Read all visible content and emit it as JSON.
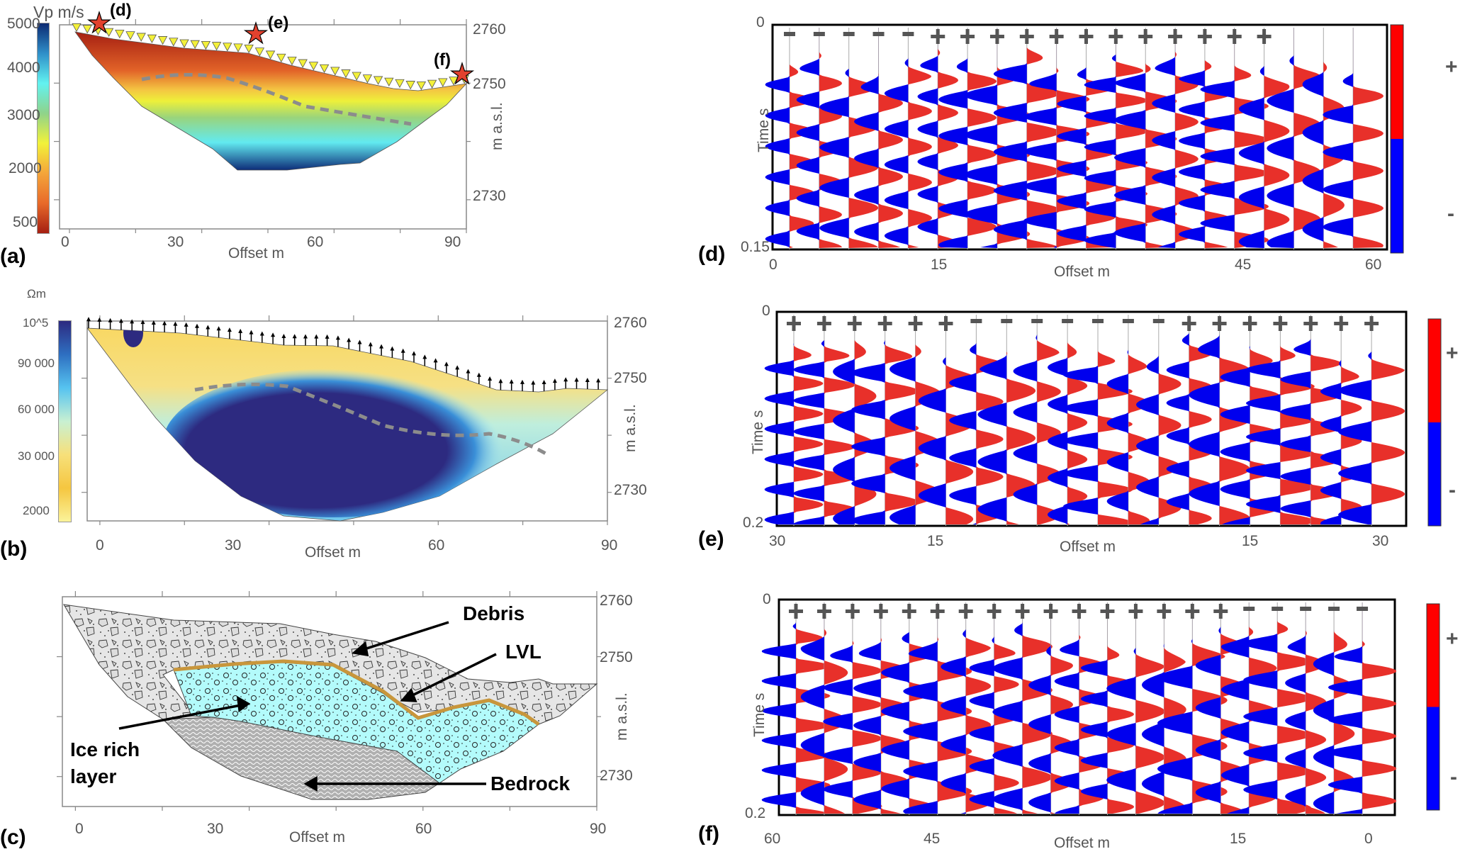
{
  "figure": {
    "panels": {
      "a": {
        "label": "(a)",
        "colorbar_title": "Vp m/s",
        "colorbar_ticks": [
          "5000",
          "4000",
          "3000",
          "2000",
          "500"
        ],
        "colorbar_colors": [
          "#0c2a72",
          "#2f8fc9",
          "#62f2f0",
          "#8fd38a",
          "#f2f23a",
          "#f4a53a",
          "#e86a2a",
          "#a51f12"
        ],
        "x_ticks": [
          "0",
          "30",
          "60",
          "90"
        ],
        "xlabel": "Offset m",
        "y_ticks": [
          "2760",
          "2750",
          "2730"
        ],
        "ylabel": "m a.s.l.",
        "markers": [
          {
            "label": "(d)",
            "offset_m": 10
          },
          {
            "label": "(e)",
            "offset_m": 47
          },
          {
            "label": "(f)",
            "offset_m": 90
          }
        ],
        "geophone_symbol": "inverted-yellow-triangle"
      },
      "b": {
        "label": "(b)",
        "colorbar_title": "Ωm",
        "colorbar_ticks": [
          "10^5",
          "90 000",
          "60 000",
          "30 000",
          "2000"
        ],
        "colorbar_colors": [
          "#2d2a80",
          "#2e6fc1",
          "#56c3f0",
          "#c8f0d2",
          "#f7e07a",
          "#f5c640",
          "#fbf39a"
        ],
        "x_ticks": [
          "0",
          "30",
          "60",
          "90"
        ],
        "xlabel": "Offset m",
        "y_ticks": [
          "2760",
          "2750",
          "2730"
        ],
        "ylabel": "m a.s.l.",
        "electrode_symbol": "up-arrow"
      },
      "c": {
        "label": "(c)",
        "x_ticks": [
          "0",
          "30",
          "60",
          "90"
        ],
        "xlabel": "Offset m",
        "y_ticks": [
          "2760",
          "2750",
          "2730"
        ],
        "ylabel": "m a.s.l.",
        "annotations": {
          "debris": "Debris",
          "lvl": "LVL",
          "ice": [
            "Ice rich",
            "layer"
          ],
          "bedrock": "Bedrock"
        },
        "colors": {
          "debris": "#e6e6e6",
          "ice": "#b3fbfb",
          "lvl": "#c8963c",
          "bedrock": "#a8a8a8"
        }
      },
      "d": {
        "label": "(d)",
        "x_ticks": [
          "0",
          "15",
          "45",
          "60"
        ],
        "xlabel": "Offset m",
        "y_ticks": [
          "0",
          "0.15"
        ],
        "ylabel": "Time s",
        "polarity": [
          "-",
          "-",
          "-",
          "-",
          "-",
          "+",
          "+",
          "+",
          "+",
          "+",
          "+",
          "+",
          "+",
          "+",
          "+",
          "+",
          "+",
          "",
          "",
          ""
        ],
        "legend": {
          "plus": "+",
          "minus": "-"
        }
      },
      "e": {
        "label": "(e)",
        "x_ticks": [
          "30",
          "15",
          "15",
          "30"
        ],
        "xlabel": "Offset m",
        "y_ticks": [
          "0",
          "0.2"
        ],
        "ylabel": "Time s",
        "polarity": [
          "+",
          "+",
          "+",
          "+",
          "+",
          "+",
          "-",
          "-",
          "-",
          "-",
          "-",
          "-",
          "-",
          "+",
          "+",
          "+",
          "+",
          "+",
          "+",
          "+"
        ],
        "legend": {
          "plus": "+",
          "minus": "-"
        }
      },
      "f": {
        "label": "(f)",
        "x_ticks": [
          "60",
          "45",
          "15",
          "0"
        ],
        "xlabel": "Offset m",
        "y_ticks": [
          "0",
          "0.2"
        ],
        "ylabel": "Time s",
        "polarity": [
          "+",
          "+",
          "+",
          "+",
          "+",
          "+",
          "+",
          "+",
          "+",
          "+",
          "+",
          "+",
          "+",
          "+",
          "+",
          "+",
          "-",
          "-",
          "-",
          "-",
          "-"
        ],
        "legend": {
          "plus": "+",
          "minus": "-"
        }
      }
    },
    "wiggle_colors": {
      "positive": "#e8302a",
      "negative": "#0000ee"
    },
    "interface_line_color": "#8c8c8c"
  }
}
